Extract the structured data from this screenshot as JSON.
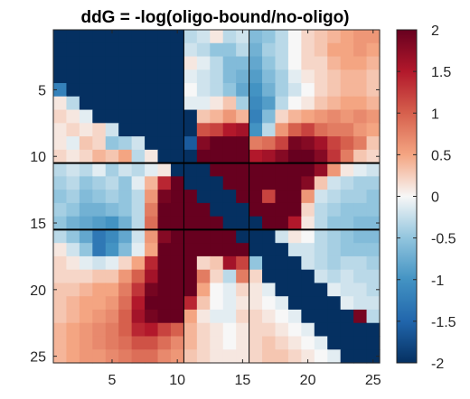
{
  "chart_data": {
    "type": "heatmap",
    "title": "ddG = -log(oligo-bound/no-oligo)",
    "xlabel": "",
    "ylabel": "",
    "xlim": [
      0.5,
      25.5
    ],
    "ylim": [
      25.5,
      0.5
    ],
    "x_ticks": [
      5,
      10,
      15,
      20,
      25
    ],
    "y_ticks": [
      5,
      10,
      15,
      20,
      25
    ],
    "colorbar": {
      "min": -2,
      "max": 2,
      "ticks": [
        "2",
        "1.5",
        "1",
        "0.5",
        "0",
        "-0.5",
        "-1",
        "-1.5",
        "-2"
      ],
      "colormap": [
        "#053061",
        "#2166ac",
        "#4393c3",
        "#92c5de",
        "#f7f7f7",
        "#f4a582",
        "#d6604d",
        "#b2182b",
        "#67001f"
      ]
    },
    "divider_lines": {
      "x": [
        10.5,
        15.5
      ],
      "y": [
        10.5,
        15.5
      ]
    },
    "values": [
      [
        -2,
        -2,
        -2,
        -2,
        -2,
        -2,
        -2,
        -2,
        -2,
        -2,
        -0.3,
        -0.2,
        0.1,
        -0.3,
        -0.2,
        -0.6,
        -0.5,
        -0.3,
        0,
        0.2,
        0.3,
        0.4,
        0.5,
        0.6,
        0.6
      ],
      [
        -2,
        -2,
        -2,
        -2,
        -2,
        -2,
        -2,
        -2,
        -2,
        -2,
        -0.2,
        -0.3,
        -0.5,
        -0.5,
        -0.3,
        -0.7,
        -0.4,
        -0.3,
        0,
        0.2,
        0.3,
        0.5,
        0.5,
        0.6,
        0.5
      ],
      [
        -2,
        -2,
        -2,
        -2,
        -2,
        -2,
        -2,
        -2,
        -2,
        -2,
        0.1,
        -0.1,
        -0.3,
        -0.6,
        -0.6,
        -0.8,
        -0.5,
        -0.3,
        0,
        0.2,
        0.2,
        0.4,
        0.5,
        0.5,
        0.4
      ],
      [
        -2,
        -2,
        -2,
        -2,
        -2,
        -2,
        -2,
        -2,
        -2,
        -2,
        -0.1,
        -0.2,
        -0.3,
        -0.6,
        -0.7,
        -0.9,
        -0.6,
        -0.4,
        -0.1,
        0.1,
        0.2,
        0.3,
        0.4,
        0.4,
        0.3
      ],
      [
        -1.2,
        -2,
        -2,
        -2,
        -2,
        -2,
        -2,
        -2,
        -2,
        -2,
        0,
        -0.2,
        -0.3,
        -0.5,
        -0.8,
        -1.0,
        -0.7,
        -0.4,
        -0.2,
        0,
        0.2,
        0.3,
        0.4,
        0.4,
        0.3
      ],
      [
        0.1,
        -0.3,
        -2,
        -2,
        -2,
        -2,
        -2,
        -2,
        -2,
        -2,
        -0.1,
        -0.1,
        0.1,
        0.3,
        -0.4,
        -1.1,
        -0.9,
        -0.3,
        0,
        0.1,
        0.3,
        0.4,
        0.5,
        0.5,
        0.4
      ],
      [
        0.2,
        0.1,
        -0.1,
        -2,
        -2,
        -2,
        -2,
        -2,
        -2,
        -2,
        -2,
        0.3,
        0.4,
        0.6,
        0.4,
        -1.2,
        -0.6,
        0.2,
        0.4,
        0.5,
        0.6,
        0.7,
        0.6,
        0.7,
        0.6
      ],
      [
        0.1,
        0.2,
        0.1,
        0.2,
        -0.2,
        -2,
        -2,
        -2,
        -2,
        -2,
        -2,
        1.1,
        1.2,
        1.5,
        1.6,
        -1.0,
        -0.3,
        0.6,
        1.0,
        1.2,
        0.9,
        0.8,
        0.8,
        0.6,
        0.5
      ],
      [
        0.1,
        -0.1,
        0.3,
        0.2,
        -0.5,
        -0.4,
        -0.2,
        -2,
        -2,
        -2,
        -1.6,
        1.8,
        2,
        2,
        2,
        0.8,
        0.9,
        1.2,
        1.9,
        1.8,
        1.6,
        1.2,
        1.0,
        0.8,
        0.3
      ],
      [
        0.2,
        0.1,
        0.2,
        0.4,
        0.3,
        0.5,
        -0.3,
        0.1,
        -2,
        -2,
        -2,
        2,
        2,
        2,
        2,
        1.5,
        1.6,
        1.8,
        2,
        2,
        1.8,
        1.3,
        0.8,
        0.3,
        0.2
      ],
      [
        -0.3,
        -0.2,
        -0.3,
        -0.1,
        -0.4,
        -0.2,
        -0.3,
        -0.1,
        0.1,
        -2,
        -2,
        -2,
        2,
        2,
        2,
        2,
        2,
        2,
        2,
        2,
        1.7,
        0.6,
        0.1,
        -0.1,
        -0.2
      ],
      [
        -0.4,
        -0.3,
        -0.5,
        -0.4,
        -0.3,
        -0.5,
        -0.1,
        0.4,
        1.4,
        2,
        -2,
        -2,
        -2,
        2,
        2,
        2,
        2,
        2,
        2,
        1.8,
        0.3,
        -0.2,
        -0.3,
        -0.4,
        -0.4
      ],
      [
        -0.5,
        -0.4,
        -0.6,
        -0.5,
        -0.4,
        -0.5,
        -0.3,
        0.6,
        1.9,
        2,
        2,
        -2,
        -2,
        -2,
        2,
        2,
        1.2,
        2,
        2,
        0.6,
        -0.2,
        -0.3,
        -0.4,
        -0.4,
        -0.5
      ],
      [
        -0.4,
        -0.5,
        -0.7,
        -0.7,
        -0.6,
        -0.5,
        -0.3,
        0.8,
        2,
        2,
        2,
        2,
        -2,
        -2,
        -2,
        2,
        2,
        2,
        2,
        0.2,
        -0.3,
        -0.4,
        -0.5,
        -0.5,
        -0.5
      ],
      [
        -0.5,
        -0.7,
        -0.8,
        -0.9,
        -1.0,
        -0.7,
        -0.3,
        0.9,
        2,
        2,
        2,
        2,
        2,
        -2,
        -2,
        -2,
        2,
        2,
        1.5,
        0.1,
        -0.3,
        -0.5,
        -0.5,
        -0.6,
        -0.6
      ],
      [
        -0.3,
        -0.5,
        -0.8,
        -1.3,
        -1.1,
        -0.8,
        -0.2,
        0.6,
        1.8,
        2,
        2,
        2,
        2,
        2,
        -2,
        -2,
        -2,
        -0.2,
        0.1,
        0,
        -0.3,
        -0.4,
        -0.5,
        -0.6,
        -0.6
      ],
      [
        0.1,
        -0.2,
        -0.5,
        -1.3,
        -1.0,
        -0.6,
        -0.1,
        0.5,
        2,
        2,
        2,
        2,
        2,
        2,
        2,
        -2,
        -2,
        -2,
        -0.2,
        -0.2,
        -0.3,
        -0.4,
        -0.5,
        -0.5,
        -0.5
      ],
      [
        0.2,
        0.1,
        -0.1,
        -0.2,
        -0.1,
        0.2,
        0.5,
        1.4,
        2,
        2,
        2,
        0.2,
        0.3,
        1.6,
        1.2,
        -0.5,
        -2,
        -2,
        -2,
        -0.2,
        -0.3,
        -0.4,
        -0.3,
        -0.3,
        -0.4
      ],
      [
        0.2,
        0.2,
        0.2,
        0.3,
        0.3,
        0.6,
        1.0,
        1.6,
        2,
        2,
        2,
        0.8,
        0.2,
        -0.3,
        0.8,
        0.2,
        -2,
        -2,
        -2,
        -2,
        -0.2,
        -0.3,
        -0.2,
        -0.3,
        -0.3
      ],
      [
        0.3,
        0.3,
        0.4,
        0.5,
        0.5,
        0.8,
        1.3,
        1.9,
        2,
        2,
        2,
        0.5,
        0,
        -0.1,
        0.2,
        0.1,
        -0.1,
        -2,
        -2,
        -2,
        -2,
        -0.1,
        -0.2,
        -0.2,
        -0.3
      ],
      [
        0.3,
        0.4,
        0.5,
        0.5,
        0.6,
        0.9,
        1.5,
        2,
        2,
        2,
        1.4,
        0.3,
        0,
        -0.1,
        0.1,
        0.1,
        0,
        -0.1,
        -2,
        -2,
        -2,
        -2,
        -0.1,
        -0.2,
        -0.2
      ],
      [
        0.3,
        0.4,
        0.5,
        0.6,
        0.7,
        1.0,
        1.6,
        1.9,
        2,
        2,
        0.5,
        0.1,
        -0.1,
        -0.1,
        0.2,
        0.2,
        0.1,
        0,
        -0.1,
        -2,
        -2,
        -2,
        -2,
        1.9,
        -0.3
      ],
      [
        0.4,
        0.5,
        0.6,
        0.7,
        0.8,
        1.0,
        1.4,
        1.5,
        1.2,
        1.0,
        0.4,
        0.2,
        0.1,
        0,
        0.1,
        0.2,
        0.2,
        0.1,
        0,
        -0.1,
        -2,
        -2,
        -2,
        -2,
        -2
      ],
      [
        0.4,
        0.5,
        0.6,
        0.7,
        0.8,
        0.9,
        1.1,
        1.1,
        0.9,
        0.7,
        0.4,
        0.2,
        0.1,
        0,
        0.1,
        0.2,
        0.3,
        0.2,
        0.1,
        0,
        -0.1,
        -2,
        -2,
        -2,
        -2
      ],
      [
        0.4,
        0.5,
        0.6,
        0.6,
        0.7,
        0.8,
        0.9,
        0.9,
        0.7,
        0.6,
        0.3,
        0.2,
        0.1,
        0.1,
        0.1,
        0.2,
        0.3,
        0.3,
        0.2,
        0.1,
        0,
        -0.1,
        -2,
        -2,
        -2
      ]
    ]
  }
}
